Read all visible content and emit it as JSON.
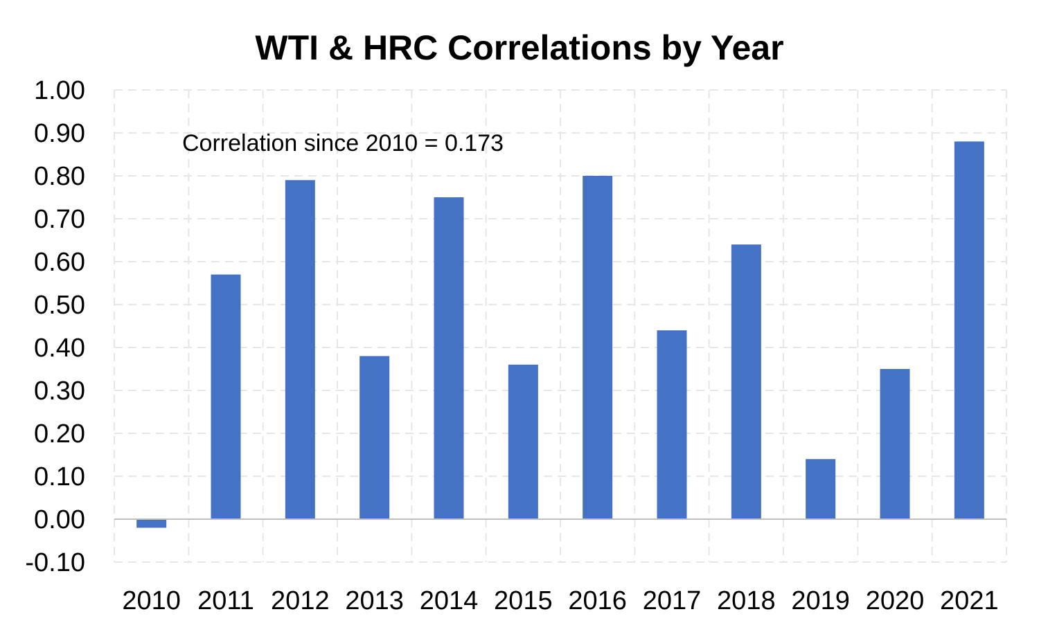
{
  "chart_data": {
    "type": "bar",
    "title": "WTI & HRC Correlations by Year",
    "annotation": "Correlation since 2010 = 0.173",
    "categories": [
      "2010",
      "2011",
      "2012",
      "2013",
      "2014",
      "2015",
      "2016",
      "2017",
      "2018",
      "2019",
      "2020",
      "2021"
    ],
    "series": [
      {
        "values": [
          -0.02,
          0.57,
          0.79,
          0.38,
          0.75,
          0.36,
          0.8,
          0.44,
          0.64,
          0.14,
          0.35,
          0.88
        ],
        "color": "#4472C4"
      }
    ],
    "y_ticks": [
      "-0.10",
      "0.00",
      "0.10",
      "0.20",
      "0.30",
      "0.40",
      "0.50",
      "0.60",
      "0.70",
      "0.80",
      "0.90",
      "1.00"
    ],
    "ylim": [
      -0.1,
      1.0
    ],
    "xlabel": "",
    "ylabel": "",
    "grid": true,
    "legend": "none"
  }
}
